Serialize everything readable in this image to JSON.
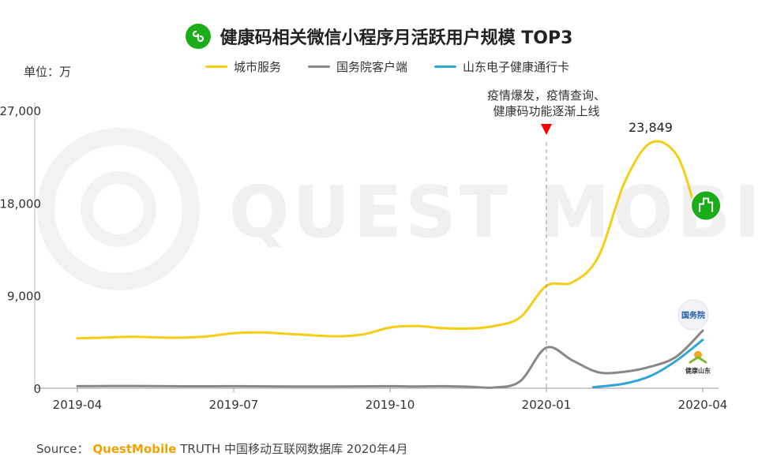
{
  "title": "健康码相关微信小程序月活跃用户规模 TOP3",
  "unit_label": "单位：万",
  "source": {
    "prefix": "Source：",
    "brand": "QuestMobile",
    "rest": "TRUTH 中国移动互联网数据库 2020年4月"
  },
  "watermark": "QUEST MOBILE",
  "chart_data": {
    "type": "line",
    "title": "健康码相关微信小程序月活跃用户规模 TOP3",
    "ylabel": "万",
    "ylim": [
      0,
      27000
    ],
    "yticks": [
      0,
      9000,
      18000,
      27000
    ],
    "ytick_labels": [
      "0",
      "9,000",
      "18,000",
      "27,000"
    ],
    "xlim": [
      0,
      12
    ],
    "xticks": [
      0,
      3,
      6,
      9,
      12
    ],
    "xtick_labels": [
      "2019-04",
      "2019-07",
      "2019-10",
      "2020-01",
      "2020-04"
    ],
    "series": [
      {
        "name": "城市服务",
        "color": "#f5cd14",
        "x": [
          0,
          0.5,
          1,
          1.5,
          2,
          2.5,
          3,
          3.5,
          4,
          4.5,
          5,
          5.5,
          6,
          6.5,
          7,
          7.5,
          8,
          8.5,
          9,
          9.5,
          10,
          10.5,
          11,
          11.5,
          11.85
        ],
        "y": [
          4850,
          4920,
          5000,
          4950,
          4920,
          5050,
          5350,
          5420,
          5300,
          5150,
          5050,
          5250,
          5900,
          6050,
          5850,
          5800,
          6050,
          6900,
          9950,
          10300,
          12800,
          20000,
          23849,
          22700,
          17600
        ]
      },
      {
        "name": "国务院客户端",
        "color": "#888888",
        "x": [
          0,
          1,
          2,
          3,
          4,
          5,
          6,
          6.5,
          7,
          7.5,
          8,
          8.5,
          9,
          9.5,
          10,
          10.5,
          11,
          11.5,
          12
        ],
        "y": [
          200,
          220,
          190,
          200,
          180,
          180,
          200,
          180,
          200,
          150,
          80,
          700,
          3950,
          2700,
          1550,
          1600,
          2100,
          3100,
          5600
        ]
      },
      {
        "name": "山东电子健康通行卡",
        "color": "#2ea5d8",
        "x": [
          9.9,
          10.5,
          11,
          11.5,
          12
        ],
        "y": [
          100,
          450,
          1200,
          2700,
          4700
        ]
      }
    ],
    "annotations": [
      {
        "text": "23,849",
        "x": 11,
        "y": 23849
      },
      {
        "lines": [
          "疫情爆发，疫情查询、",
          "健康码功能逐渐上线"
        ],
        "x": 9,
        "marker": "down-triangle",
        "marker_color": "#ff0000"
      }
    ],
    "series_badges": [
      {
        "series": "城市服务",
        "label": "城市服务",
        "color": "#1aad19"
      },
      {
        "series": "国务院客户端",
        "label": "国务院",
        "color": "#1f5fa8"
      },
      {
        "series": "山东电子健康通行卡",
        "label": "健康山东",
        "color": "#7cbb2e"
      }
    ],
    "grid": false,
    "legend_position": "top-center"
  }
}
